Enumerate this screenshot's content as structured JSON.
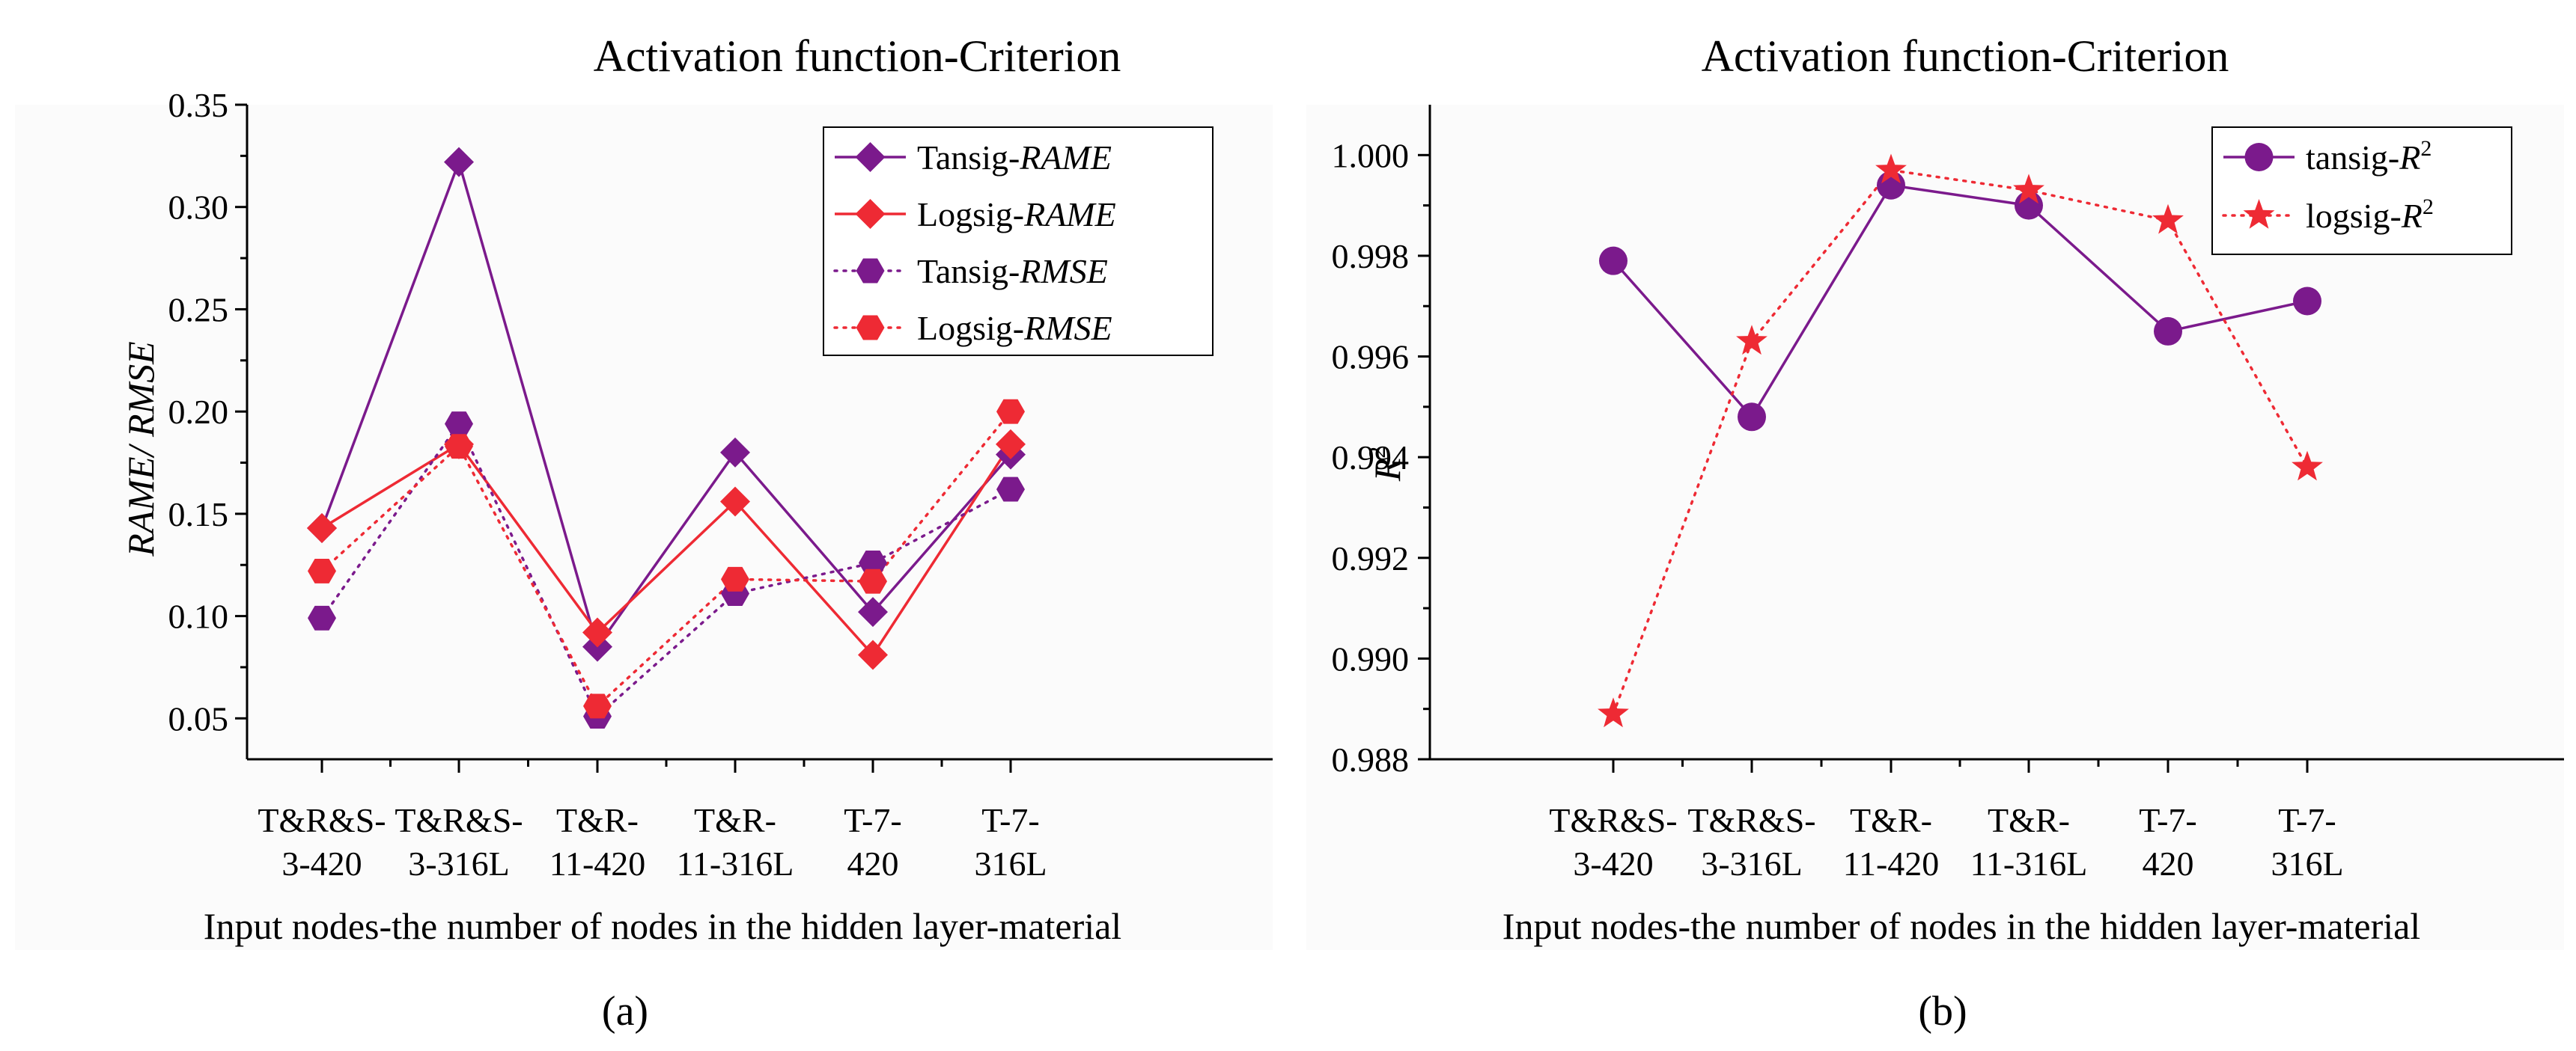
{
  "colors": {
    "purple": "#7b1a8c",
    "red": "#ee2a34"
  },
  "chart_data": [
    {
      "type": "line",
      "panel_caption": "(a)",
      "title": "Activation function-Criterion",
      "xlabel": "Input nodes-the number of nodes in the hidden layer-material",
      "ylabel": "RAME/ RMSE",
      "categories": [
        [
          "T&R&S-",
          "3-420"
        ],
        [
          "T&R&S-",
          "3-316L"
        ],
        [
          "T&R-",
          "11-420"
        ],
        [
          "T&R-",
          "11-316L"
        ],
        [
          "T-7-",
          "420"
        ],
        [
          "T-7-",
          "316L"
        ]
      ],
      "ylim": [
        0.03,
        0.35
      ],
      "yticks": [
        0.05,
        0.1,
        0.15,
        0.2,
        0.25,
        0.3,
        0.35
      ],
      "ytick_labels": [
        "0.05",
        "0.10",
        "0.15",
        "0.20",
        "0.25",
        "0.30",
        "0.35"
      ],
      "legend_position": "top-right",
      "series": [
        {
          "name": "Tansig-",
          "name_italic": "RAME",
          "color": "#7b1a8c",
          "marker": "diamond",
          "line": "solid",
          "values": [
            0.143,
            0.322,
            0.085,
            0.18,
            0.102,
            0.179
          ]
        },
        {
          "name": "Logsig-",
          "name_italic": "RAME",
          "color": "#ee2a34",
          "marker": "diamond",
          "line": "solid",
          "values": [
            0.143,
            0.184,
            0.092,
            0.156,
            0.081,
            0.184
          ]
        },
        {
          "name": "Tansig-",
          "name_italic": "RMSE",
          "color": "#7b1a8c",
          "marker": "hexagon",
          "line": "dotted",
          "values": [
            0.099,
            0.194,
            0.051,
            0.111,
            0.126,
            0.162
          ]
        },
        {
          "name": "Logsig-",
          "name_italic": "RMSE",
          "color": "#ee2a34",
          "marker": "hexagon",
          "line": "dotted",
          "values": [
            0.122,
            0.183,
            0.056,
            0.118,
            0.117,
            0.2
          ]
        }
      ]
    },
    {
      "type": "line",
      "panel_caption": "(b)",
      "title": "Activation function-Criterion",
      "xlabel": "Input nodes-the number of nodes in the hidden layer-material",
      "ylabel": "R",
      "ylabel_sup": "2",
      "categories": [
        [
          "T&R&S-",
          "3-420"
        ],
        [
          "T&R&S-",
          "3-316L"
        ],
        [
          "T&R-",
          "11-420"
        ],
        [
          "T&R-",
          "11-316L"
        ],
        [
          "T-7-",
          "420"
        ],
        [
          "T-7-",
          "316L"
        ]
      ],
      "ylim": [
        0.988,
        1.001
      ],
      "yticks": [
        0.988,
        0.99,
        0.992,
        0.994,
        0.996,
        0.998,
        1.0
      ],
      "ytick_labels": [
        "0.988",
        "0.990",
        "0.992",
        "0.994",
        "0.996",
        "0.998",
        "1.000"
      ],
      "legend_position": "top-right",
      "series": [
        {
          "name": "tansig-",
          "name_italic": "R",
          "name_sup": "2",
          "color": "#7b1a8c",
          "marker": "circle",
          "line": "solid",
          "values": [
            0.9979,
            0.9948,
            0.9994,
            0.999,
            0.9965,
            0.9971
          ]
        },
        {
          "name": "logsig-",
          "name_italic": "R",
          "name_sup": "2",
          "color": "#ee2a34",
          "marker": "star",
          "line": "dotted",
          "values": [
            0.9889,
            0.9963,
            0.9997,
            0.9993,
            0.9987,
            0.9938
          ]
        }
      ]
    }
  ]
}
